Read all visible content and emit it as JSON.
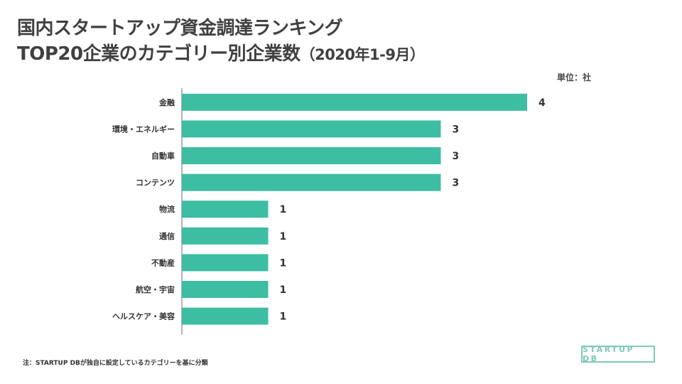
{
  "title": {
    "line1": "国内スタートアップ資金調達ランキング",
    "line2_main": "TOP20企業のカテゴリー別企業数",
    "line2_period": "（2020年1-9月）"
  },
  "unit_label": "単位：社",
  "footnote": "注：STARTUP DBが独自に設定しているカテゴリーを基に分類",
  "logo_text": "STARTUP DB",
  "colors": {
    "bar": "#3dbda2",
    "axis": "#9a9a9a",
    "label": "#333333"
  },
  "chart_data": {
    "type": "bar",
    "orientation": "horizontal",
    "categories": [
      "金融",
      "環境・エネルギー",
      "自動車",
      "コンテンツ",
      "物流",
      "通信",
      "不動産",
      "航空・宇宙",
      "ヘルスケア・美容"
    ],
    "values": [
      4,
      3,
      3,
      3,
      1,
      1,
      1,
      1,
      1
    ],
    "title": "",
    "xlabel": "",
    "ylabel": "",
    "xlim": [
      0,
      4
    ],
    "grid": false,
    "legend": "none",
    "data_labels": true
  }
}
